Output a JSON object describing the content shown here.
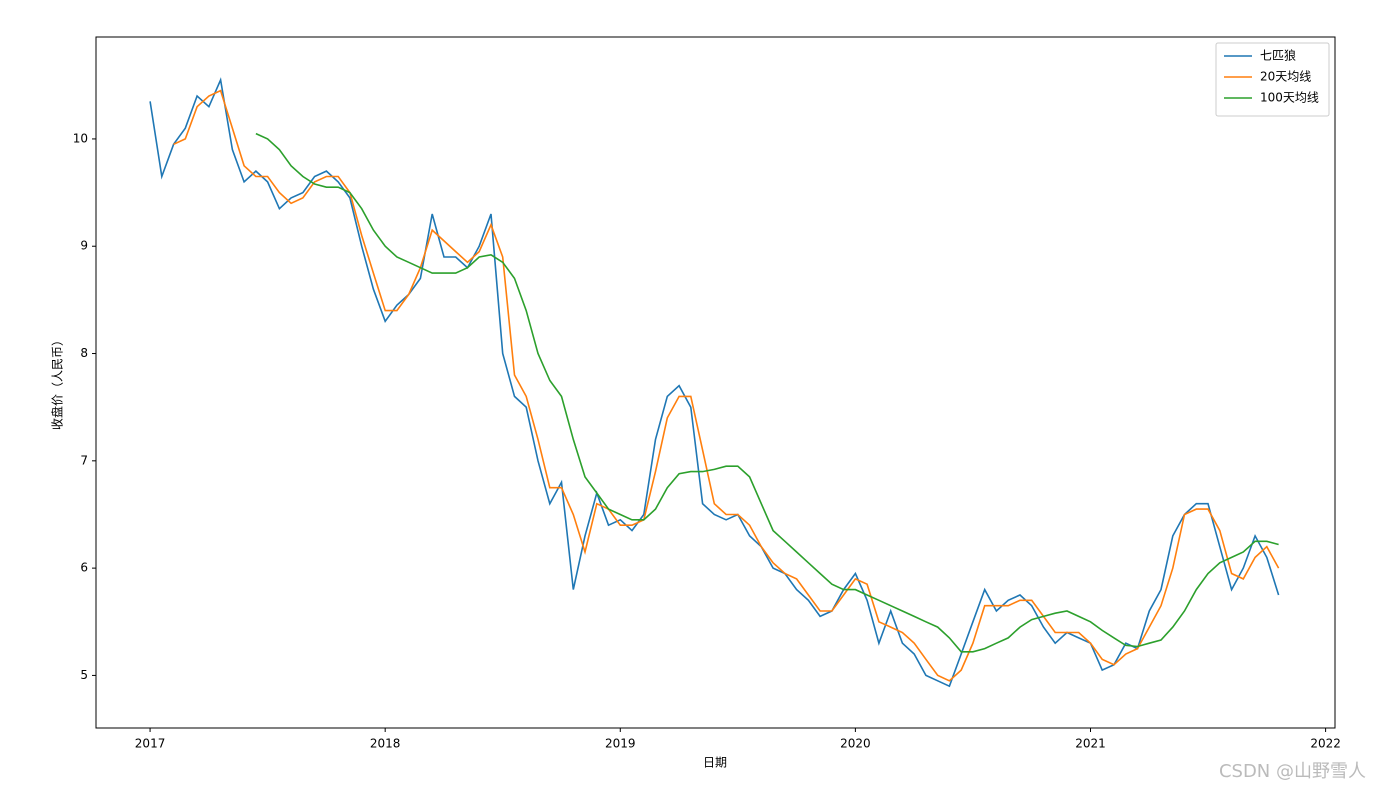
{
  "chart_data": {
    "type": "line",
    "xlabel": "日期",
    "ylabel": "收盘价（人民币）",
    "xlim": [
      2016.77,
      2022.04
    ],
    "ylim": [
      4.51,
      10.95
    ],
    "xticks": [
      2017,
      2018,
      2019,
      2020,
      2021,
      2022
    ],
    "yticks": [
      5,
      6,
      7,
      8,
      9,
      10
    ],
    "legend": "upper right",
    "x": [
      2017.0,
      2017.05,
      2017.1,
      2017.15,
      2017.2,
      2017.25,
      2017.3,
      2017.35,
      2017.4,
      2017.45,
      2017.5,
      2017.55,
      2017.6,
      2017.65,
      2017.7,
      2017.75,
      2017.8,
      2017.85,
      2017.9,
      2017.95,
      2018.0,
      2018.05,
      2018.1,
      2018.15,
      2018.2,
      2018.25,
      2018.3,
      2018.35,
      2018.4,
      2018.45,
      2018.5,
      2018.55,
      2018.6,
      2018.65,
      2018.7,
      2018.75,
      2018.8,
      2018.85,
      2018.9,
      2018.95,
      2019.0,
      2019.05,
      2019.1,
      2019.15,
      2019.2,
      2019.25,
      2019.3,
      2019.35,
      2019.4,
      2019.45,
      2019.5,
      2019.55,
      2019.6,
      2019.65,
      2019.7,
      2019.75,
      2019.8,
      2019.85,
      2019.9,
      2019.95,
      2020.0,
      2020.05,
      2020.1,
      2020.15,
      2020.2,
      2020.25,
      2020.3,
      2020.35,
      2020.4,
      2020.45,
      2020.5,
      2020.55,
      2020.6,
      2020.65,
      2020.7,
      2020.75,
      2020.8,
      2020.85,
      2020.9,
      2020.95,
      2021.0,
      2021.05,
      2021.1,
      2021.15,
      2021.2,
      2021.25,
      2021.3,
      2021.35,
      2021.4,
      2021.45,
      2021.5,
      2021.55,
      2021.6,
      2021.65,
      2021.7,
      2021.75,
      2021.8
    ],
    "series": [
      {
        "name": "七匹狼",
        "color": "#1f77b4",
        "values": [
          10.35,
          9.65,
          9.95,
          10.1,
          10.4,
          10.3,
          10.55,
          9.9,
          9.6,
          9.7,
          9.6,
          9.35,
          9.45,
          9.5,
          9.65,
          9.7,
          9.6,
          9.45,
          9.0,
          8.6,
          8.3,
          8.45,
          8.55,
          8.7,
          9.3,
          8.9,
          8.9,
          8.8,
          9.0,
          9.3,
          8.0,
          7.6,
          7.5,
          7.0,
          6.6,
          6.8,
          5.8,
          6.3,
          6.7,
          6.4,
          6.45,
          6.35,
          6.5,
          7.2,
          7.6,
          7.7,
          7.5,
          6.6,
          6.5,
          6.45,
          6.5,
          6.3,
          6.2,
          6.0,
          5.95,
          5.8,
          5.7,
          5.55,
          5.6,
          5.8,
          5.95,
          5.7,
          5.3,
          5.6,
          5.3,
          5.2,
          5.0,
          4.95,
          4.9,
          5.2,
          5.5,
          5.8,
          5.6,
          5.7,
          5.75,
          5.65,
          5.45,
          5.3,
          5.4,
          5.35,
          5.3,
          5.05,
          5.1,
          5.3,
          5.25,
          5.6,
          5.8,
          6.3,
          6.5,
          6.6,
          6.6,
          6.2,
          5.8,
          6.0,
          6.3,
          6.1,
          5.75
        ]
      },
      {
        "name": "20天均线",
        "color": "#ff7f0e",
        "values": [
          null,
          null,
          9.95,
          10.0,
          10.3,
          10.4,
          10.45,
          10.1,
          9.75,
          9.65,
          9.65,
          9.5,
          9.4,
          9.45,
          9.6,
          9.65,
          9.65,
          9.5,
          9.1,
          8.75,
          8.4,
          8.4,
          8.55,
          8.8,
          9.15,
          9.05,
          8.95,
          8.85,
          8.95,
          9.2,
          8.9,
          7.8,
          7.6,
          7.2,
          6.75,
          6.75,
          6.5,
          6.15,
          6.6,
          6.55,
          6.4,
          6.4,
          6.45,
          6.9,
          7.4,
          7.6,
          7.6,
          7.1,
          6.6,
          6.5,
          6.5,
          6.4,
          6.2,
          6.05,
          5.95,
          5.9,
          5.75,
          5.6,
          5.6,
          5.75,
          5.9,
          5.85,
          5.5,
          5.45,
          5.4,
          5.3,
          5.15,
          5.0,
          4.95,
          5.05,
          5.3,
          5.65,
          5.65,
          5.65,
          5.7,
          5.7,
          5.55,
          5.4,
          5.4,
          5.4,
          5.3,
          5.15,
          5.1,
          5.2,
          5.25,
          5.45,
          5.65,
          6.0,
          6.5,
          6.55,
          6.55,
          6.35,
          5.95,
          5.9,
          6.1,
          6.2,
          6.0
        ]
      },
      {
        "name": "100天均线",
        "color": "#2ca02c",
        "values": [
          null,
          null,
          null,
          null,
          null,
          null,
          null,
          null,
          null,
          10.05,
          10.0,
          9.9,
          9.75,
          9.65,
          9.58,
          9.55,
          9.55,
          9.5,
          9.35,
          9.15,
          9.0,
          8.9,
          8.85,
          8.8,
          8.75,
          8.75,
          8.75,
          8.8,
          8.9,
          8.92,
          8.85,
          8.7,
          8.4,
          8.0,
          7.75,
          7.6,
          7.2,
          6.85,
          6.7,
          6.55,
          6.5,
          6.45,
          6.45,
          6.55,
          6.75,
          6.88,
          6.9,
          6.9,
          6.92,
          6.95,
          6.95,
          6.85,
          6.6,
          6.35,
          6.25,
          6.15,
          6.05,
          5.95,
          5.85,
          5.8,
          5.8,
          5.75,
          5.7,
          5.65,
          5.6,
          5.55,
          5.5,
          5.45,
          5.35,
          5.22,
          5.22,
          5.25,
          5.3,
          5.35,
          5.45,
          5.52,
          5.55,
          5.58,
          5.6,
          5.55,
          5.5,
          5.42,
          5.35,
          5.28,
          5.27,
          5.3,
          5.33,
          5.45,
          5.6,
          5.8,
          5.95,
          6.05,
          6.1,
          6.15,
          6.25,
          6.25,
          6.22
        ]
      }
    ]
  },
  "watermark": "CSDN @山野雪人"
}
